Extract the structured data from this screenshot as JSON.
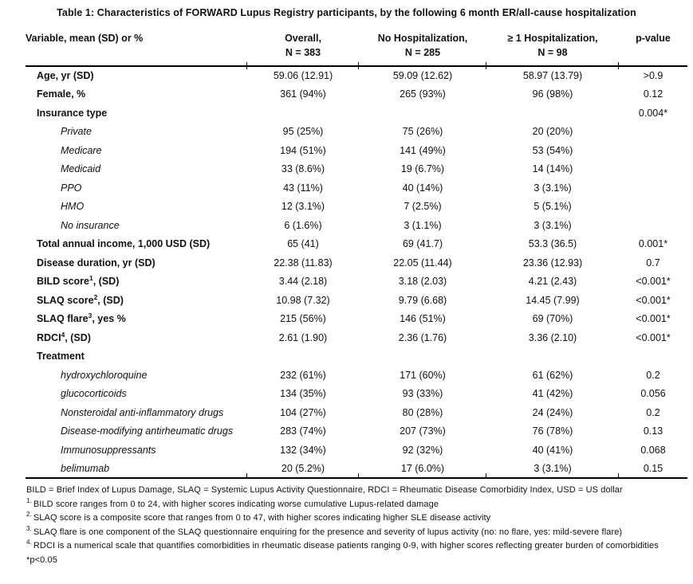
{
  "title": "Table 1: Characteristics of FORWARD Lupus Registry participants, by the following 6 month ER/all-cause hospitalization",
  "table": {
    "columns": [
      {
        "label": "Variable, mean (SD) or %",
        "sub": ""
      },
      {
        "label": "Overall,",
        "sub": "N = 383"
      },
      {
        "label": "No Hospitalization,",
        "sub": "N = 285"
      },
      {
        "label": "≥ 1 Hospitalization,",
        "sub": "N = 98"
      },
      {
        "label": "p-value",
        "sub": ""
      }
    ],
    "rows": [
      {
        "label": "Age, yr (SD)",
        "sup": "",
        "after": "",
        "style": "main",
        "overall": "59.06 (12.91)",
        "no_hosp": "59.09 (12.62)",
        "hosp": "58.97 (13.79)",
        "p": ">0.9"
      },
      {
        "label": "Female, %",
        "sup": "",
        "after": "",
        "style": "main",
        "overall": "361 (94%)",
        "no_hosp": "265 (93%)",
        "hosp": "96 (98%)",
        "p": "0.12"
      },
      {
        "label": "Insurance type",
        "sup": "",
        "after": "",
        "style": "main",
        "overall": "",
        "no_hosp": "",
        "hosp": "",
        "p": "0.004*"
      },
      {
        "label": "Private",
        "sup": "",
        "after": "",
        "style": "sub",
        "overall": "95 (25%)",
        "no_hosp": "75 (26%)",
        "hosp": "20 (20%)",
        "p": ""
      },
      {
        "label": "Medicare",
        "sup": "",
        "after": "",
        "style": "sub",
        "overall": "194 (51%)",
        "no_hosp": "141 (49%)",
        "hosp": "53 (54%)",
        "p": ""
      },
      {
        "label": "Medicaid",
        "sup": "",
        "after": "",
        "style": "sub",
        "overall": "33 (8.6%)",
        "no_hosp": "19 (6.7%)",
        "hosp": "14 (14%)",
        "p": ""
      },
      {
        "label": "PPO",
        "sup": "",
        "after": "",
        "style": "sub",
        "overall": "43 (11%)",
        "no_hosp": "40 (14%)",
        "hosp": "3 (3.1%)",
        "p": ""
      },
      {
        "label": "HMO",
        "sup": "",
        "after": "",
        "style": "sub",
        "overall": "12 (3.1%)",
        "no_hosp": "7 (2.5%)",
        "hosp": "5 (5.1%)",
        "p": ""
      },
      {
        "label": "No insurance",
        "sup": "",
        "after": "",
        "style": "sub",
        "overall": "6 (1.6%)",
        "no_hosp": "3 (1.1%)",
        "hosp": "3 (3.1%)",
        "p": ""
      },
      {
        "label": "Total annual income, 1,000 USD (SD)",
        "sup": "",
        "after": "",
        "style": "main",
        "overall": "65 (41)",
        "no_hosp": "69 (41.7)",
        "hosp": "53.3 (36.5)",
        "p": "0.001*"
      },
      {
        "label": "Disease duration, yr (SD)",
        "sup": "",
        "after": "",
        "style": "main",
        "overall": "22.38 (11.83)",
        "no_hosp": "22.05 (11.44)",
        "hosp": "23.36 (12.93)",
        "p": "0.7"
      },
      {
        "label": "BILD score",
        "sup": "1",
        "after": ", (SD)",
        "style": "main",
        "overall": "3.44 (2.18)",
        "no_hosp": "3.18 (2.03)",
        "hosp": "4.21 (2.43)",
        "p": "<0.001*"
      },
      {
        "label": "SLAQ score",
        "sup": "2",
        "after": ", (SD)",
        "style": "main",
        "overall": "10.98 (7.32)",
        "no_hosp": "9.79 (6.68)",
        "hosp": "14.45 (7.99)",
        "p": "<0.001*"
      },
      {
        "label": "SLAQ flare",
        "sup": "3",
        "after": ", yes %",
        "style": "main",
        "overall": "215 (56%)",
        "no_hosp": "146 (51%)",
        "hosp": "69 (70%)",
        "p": "<0.001*"
      },
      {
        "label": "RDCI",
        "sup": "4",
        "after": ", (SD)",
        "style": "main",
        "overall": "2.61 (1.90)",
        "no_hosp": "2.36 (1.76)",
        "hosp": "3.36 (2.10)",
        "p": "<0.001*"
      },
      {
        "label": "Treatment",
        "sup": "",
        "after": "",
        "style": "main",
        "overall": "",
        "no_hosp": "",
        "hosp": "",
        "p": ""
      },
      {
        "label": "hydroxychloroquine",
        "sup": "",
        "after": "",
        "style": "sub",
        "overall": "232 (61%)",
        "no_hosp": "171 (60%)",
        "hosp": "61 (62%)",
        "p": "0.2"
      },
      {
        "label": "glucocorticoids",
        "sup": "",
        "after": "",
        "style": "sub",
        "overall": "134 (35%)",
        "no_hosp": "93 (33%)",
        "hosp": "41 (42%)",
        "p": "0.056"
      },
      {
        "label": "Nonsteroidal anti-inflammatory drugs",
        "sup": "",
        "after": "",
        "style": "sub",
        "overall": "104 (27%)",
        "no_hosp": "80 (28%)",
        "hosp": "24 (24%)",
        "p": "0.2"
      },
      {
        "label": "Disease-modifying antirheumatic drugs",
        "sup": "",
        "after": "",
        "style": "sub",
        "overall": "283 (74%)",
        "no_hosp": "207 (73%)",
        "hosp": "76 (78%)",
        "p": "0.13"
      },
      {
        "label": "Immunosuppressants",
        "sup": "",
        "after": "",
        "style": "sub",
        "overall": "132 (34%)",
        "no_hosp": "92 (32%)",
        "hosp": "40 (41%)",
        "p": "0.068"
      },
      {
        "label": "belimumab",
        "sup": "",
        "after": "",
        "style": "sub",
        "overall": "20 (5.2%)",
        "no_hosp": "17 (6.0%)",
        "hosp": "3 (3.1%)",
        "p": "0.15"
      }
    ]
  },
  "footnotes": [
    {
      "marker": "",
      "text": "BILD = Brief Index of Lupus Damage, SLAQ = Systemic Lupus Activity Questionnaire, RDCI = Rheumatic Disease Comorbidity Index, USD = US dollar"
    },
    {
      "marker": "1.",
      "text": "BILD score ranges from 0 to 24, with higher scores indicating worse cumulative Lupus-related damage"
    },
    {
      "marker": "2.",
      "text": "SLAQ score is a composite score that ranges from 0 to 47, with higher scores indicating higher SLE disease activity"
    },
    {
      "marker": "3.",
      "text": "SLAQ flare is one component of the SLAQ questionnaire enquiring for the presence and severity of lupus activity (no: no flare, yes: mild-severe flare)"
    },
    {
      "marker": "4.",
      "text": "RDCI is a numerical scale that quantifies comorbidities in rheumatic disease patients ranging 0-9, with higher scores reflecting greater burden of comorbidities"
    },
    {
      "marker": "",
      "text": "*p<0.05"
    }
  ]
}
